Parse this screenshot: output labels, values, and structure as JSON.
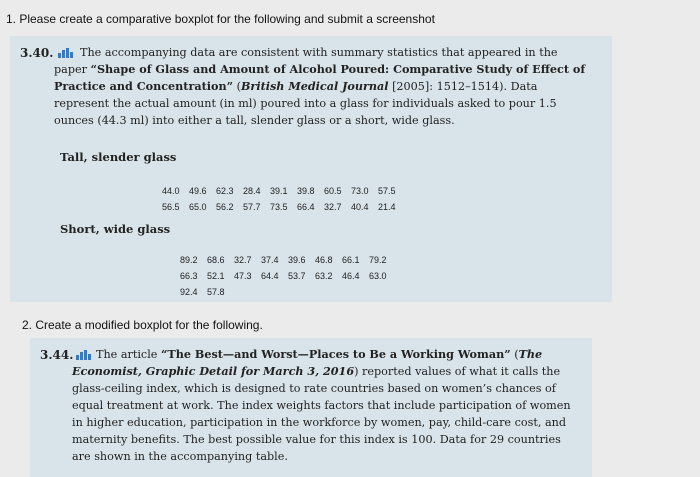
{
  "task_1": "1. Please create a comparative boxplot for the following and submit a screenshot",
  "exercise_340": {
    "number": "3.40.",
    "text_1": "The accompanying data are consistent with summary statistics that appeared in the paper ",
    "title": "“Shape of Glass and Amount of Alcohol Poured: Comparative Study of Effect of Practice and Concentration”",
    "text_2": " (",
    "journal": "British Medical Journal",
    "text_3": " [2005]: 1512–1514). Data represent the actual amount (in ml) poured into a glass for individuals asked to pour 1.5 ounces (44.3 ml) into either a tall, slender glass or a short, wide glass.",
    "groups": [
      {
        "label": "Tall, slender glass",
        "rows": [
          [
            "44.0",
            "49.6",
            "62.3",
            "28.4",
            "39.1",
            "39.8",
            "60.5",
            "73.0",
            "57.5"
          ],
          [
            "56.5",
            "65.0",
            "56.2",
            "57.7",
            "73.5",
            "66.4",
            "32.7",
            "40.4",
            "21.4"
          ]
        ]
      },
      {
        "label": "Short, wide glass",
        "rows": [
          [
            "89.2",
            "68.6",
            "32.7",
            "37.4",
            "39.6",
            "46.8",
            "66.1",
            "79.2"
          ],
          [
            "66.3",
            "52.1",
            "47.3",
            "64.4",
            "53.7",
            "63.2",
            "46.4",
            "63.0"
          ],
          [
            "92.4",
            "57.8"
          ]
        ]
      }
    ]
  },
  "task_2": "2. Create a modified boxplot for the following.",
  "exercise_344": {
    "number": "3.44.",
    "text_1": "The article ",
    "title": "“The Best—and Worst—Places to Be a Working Woman”",
    "text_2": " (",
    "journal": "The Economist, Graphic Detail for March 3, 2016",
    "text_3": ") reported values of what it calls the glass-ceiling index, which is designed to rate countries based on women’s chances of equal treatment at work. The index weights factors that include participation of women in higher education, participation in the workforce by women, pay, child-care cost, and maternity benefits. The best possible value for this index is 100. Data for 29 countries are shown in the accompanying table."
  }
}
